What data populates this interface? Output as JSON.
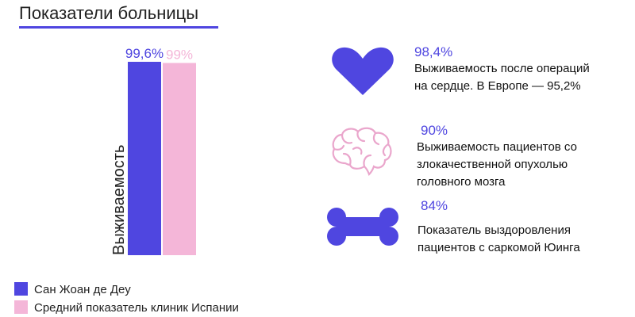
{
  "title": "Показатели больницы",
  "colors": {
    "primary": "#4f46e0",
    "secondary": "#f4b6d8",
    "brain": "#eaa6cc"
  },
  "chart_data": {
    "type": "bar",
    "ylabel": "Выживаемость",
    "ylim": [
      0,
      100
    ],
    "series": [
      {
        "name": "Сан Жоан де Деу",
        "values": [
          99.6
        ],
        "label": "99,6%"
      },
      {
        "name": "Средний показатель клиник Испании",
        "values": [
          99
        ],
        "label": "99%"
      }
    ],
    "legend": "bottom-left"
  },
  "stats": [
    {
      "icon": "heart-icon",
      "value": "98,4%",
      "desc_lines": [
        "Выживаемость после операций",
        "на сердце. В Европе — 95,2%"
      ]
    },
    {
      "icon": "brain-icon",
      "value": "90%",
      "desc_lines": [
        "Выживаемость пациентов со",
        "злокачественной опухолью",
        "головного мозга"
      ]
    },
    {
      "icon": "bone-icon",
      "value": "84%",
      "desc_lines": [
        "Показатель выздоровления",
        "пациентов с саркомой Юинга"
      ]
    }
  ]
}
